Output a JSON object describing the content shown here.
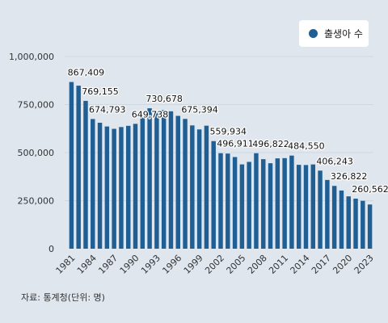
{
  "legend": {
    "label": "출생아 수"
  },
  "source": "자료: 통계청(단위: 명)",
  "colors": {
    "bar": "#1f5f94",
    "background": "#dfe6ee",
    "grid": "#cfd8e2",
    "axis": "#333333"
  },
  "chart_data": {
    "type": "bar",
    "title": "",
    "xlabel": "",
    "ylabel": "",
    "ylim": [
      0,
      1000000
    ],
    "yticks": [
      0,
      250000,
      500000,
      750000,
      1000000
    ],
    "ytick_labels": [
      "0",
      "250,000",
      "500,000",
      "750,000",
      "1,000,000"
    ],
    "grid": true,
    "legend_position": "top-right",
    "xtick_labels": [
      "1981",
      "1984",
      "1987",
      "1990",
      "1993",
      "1996",
      "1999",
      "2002",
      "2005",
      "2008",
      "2011",
      "2014",
      "2017",
      "2020",
      "2023"
    ],
    "categories": [
      "1981",
      "1982",
      "1983",
      "1984",
      "1985",
      "1986",
      "1987",
      "1988",
      "1989",
      "1990",
      "1991",
      "1992",
      "1993",
      "1994",
      "1995",
      "1996",
      "1997",
      "1998",
      "1999",
      "2000",
      "2001",
      "2002",
      "2003",
      "2004",
      "2005",
      "2006",
      "2007",
      "2008",
      "2009",
      "2010",
      "2011",
      "2012",
      "2013",
      "2014",
      "2015",
      "2016",
      "2017",
      "2018",
      "2019",
      "2020",
      "2021",
      "2022",
      "2023"
    ],
    "series": [
      {
        "name": "출생아 수",
        "values": [
          867409,
          848312,
          769155,
          674793,
          655489,
          636019,
          623831,
          633092,
          639431,
          649738,
          709275,
          730678,
          715826,
          721185,
          715020,
          691226,
          675394,
          641594,
          620668,
          640089,
          559934,
          496911,
          495036,
          476958,
          438707,
          451759,
          496822,
          465892,
          444849,
          470171,
          471265,
          484550,
          436455,
          435435,
          438420,
          406243,
          357771,
          326822,
          302676,
          272337,
          260562,
          249186,
          230028
        ]
      }
    ],
    "data_labels": [
      {
        "category": "1981",
        "value": 867409,
        "text": "867,409"
      },
      {
        "category": "1983",
        "value": 769155,
        "text": "769,155"
      },
      {
        "category": "1984",
        "value": 674793,
        "text": "674,793"
      },
      {
        "category": "1990",
        "value": 649738,
        "text": "649,738"
      },
      {
        "category": "1992",
        "value": 730678,
        "text": "730,678"
      },
      {
        "category": "1997",
        "value": 675394,
        "text": "675,394"
      },
      {
        "category": "2001",
        "value": 559934,
        "text": "559,934"
      },
      {
        "category": "2002",
        "value": 496911,
        "text": "496,911"
      },
      {
        "category": "2007",
        "value": 496822,
        "text": "496,822"
      },
      {
        "category": "2012",
        "value": 484550,
        "text": "484,550"
      },
      {
        "category": "2016",
        "value": 406243,
        "text": "406,243"
      },
      {
        "category": "2018",
        "value": 326822,
        "text": "326,822"
      },
      {
        "category": "2021",
        "value": 260562,
        "text": "260,562"
      }
    ]
  }
}
